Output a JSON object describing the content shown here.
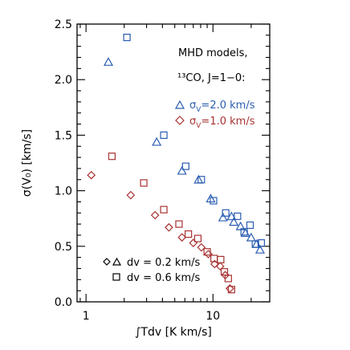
{
  "chart_data": {
    "type": "scatter",
    "xscale": "log",
    "xlim": [
      0.85,
      28
    ],
    "ylim": [
      0.0,
      2.5
    ],
    "xlabel": "∫Tdv [K km/s]",
    "ylabel": "σ(V₀) [km/s]",
    "x_ticks": [
      {
        "value": 1,
        "label": "1"
      },
      {
        "value": 10,
        "label": "10"
      }
    ],
    "y_ticks": [
      {
        "value": 0.0,
        "label": "0.0"
      },
      {
        "value": 0.5,
        "label": "0.5"
      },
      {
        "value": 1.0,
        "label": "1.0"
      },
      {
        "value": 1.5,
        "label": "1.5"
      },
      {
        "value": 2.0,
        "label": "2.0"
      },
      {
        "value": 2.5,
        "label": "2.5"
      }
    ],
    "annotation_lines": [
      "MHD models,",
      "¹³CO, J=1−0:"
    ],
    "colors": {
      "blue": "#2a5db0",
      "red": "#a83232",
      "axis": "#000000"
    },
    "series": [
      {
        "name": "σv=2.0 km/s",
        "color": "#2a5db0",
        "dv02_marker": "triangle",
        "points_dv02": [
          {
            "x": 1.5,
            "y": 2.16
          },
          {
            "x": 3.6,
            "y": 1.44
          },
          {
            "x": 5.7,
            "y": 1.18
          },
          {
            "x": 7.7,
            "y": 1.1
          },
          {
            "x": 9.6,
            "y": 0.93
          },
          {
            "x": 12.0,
            "y": 0.76
          },
          {
            "x": 14.0,
            "y": 0.77
          },
          {
            "x": 14.6,
            "y": 0.72
          },
          {
            "x": 16.5,
            "y": 0.68
          },
          {
            "x": 18.0,
            "y": 0.62
          },
          {
            "x": 20.0,
            "y": 0.58
          },
          {
            "x": 22.0,
            "y": 0.52
          },
          {
            "x": 23.5,
            "y": 0.47
          }
        ],
        "points_dv06": [
          {
            "x": 2.1,
            "y": 2.38
          },
          {
            "x": 4.1,
            "y": 1.5
          },
          {
            "x": 6.1,
            "y": 1.22
          },
          {
            "x": 8.1,
            "y": 1.1
          },
          {
            "x": 10.1,
            "y": 0.91
          },
          {
            "x": 12.6,
            "y": 0.8
          },
          {
            "x": 15.6,
            "y": 0.77
          },
          {
            "x": 17.6,
            "y": 0.63
          },
          {
            "x": 19.6,
            "y": 0.69
          },
          {
            "x": 21.6,
            "y": 0.52
          },
          {
            "x": 24.0,
            "y": 0.53
          }
        ]
      },
      {
        "name": "σv=1.0 km/s",
        "color": "#a83232",
        "dv02_marker": "diamond",
        "points_dv02": [
          {
            "x": 1.1,
            "y": 1.14
          },
          {
            "x": 2.25,
            "y": 0.96
          },
          {
            "x": 3.5,
            "y": 0.78
          },
          {
            "x": 4.5,
            "y": 0.67
          },
          {
            "x": 5.7,
            "y": 0.58
          },
          {
            "x": 7.0,
            "y": 0.53
          },
          {
            "x": 8.1,
            "y": 0.49
          },
          {
            "x": 9.2,
            "y": 0.43
          },
          {
            "x": 10.3,
            "y": 0.34
          },
          {
            "x": 11.4,
            "y": 0.32
          },
          {
            "x": 12.5,
            "y": 0.24
          },
          {
            "x": 13.6,
            "y": 0.12
          }
        ],
        "points_dv06": [
          {
            "x": 1.6,
            "y": 1.31
          },
          {
            "x": 2.85,
            "y": 1.07
          },
          {
            "x": 4.1,
            "y": 0.83
          },
          {
            "x": 5.4,
            "y": 0.7
          },
          {
            "x": 6.4,
            "y": 0.61
          },
          {
            "x": 7.6,
            "y": 0.57
          },
          {
            "x": 9.0,
            "y": 0.45
          },
          {
            "x": 10.2,
            "y": 0.39
          },
          {
            "x": 11.5,
            "y": 0.38
          },
          {
            "x": 12.3,
            "y": 0.27
          },
          {
            "x": 13.2,
            "y": 0.21
          },
          {
            "x": 14.0,
            "y": 0.11
          }
        ]
      }
    ],
    "legend": {
      "position": "upper-right",
      "series_labels": [
        {
          "prefix": "σ",
          "sub": "V",
          "suffix": "=2.0 km/s"
        },
        {
          "prefix": "σ",
          "sub": "V",
          "suffix": "=1.0 km/s"
        }
      ],
      "marker_key": [
        {
          "label": "dv = 0.2 km/s"
        },
        {
          "label": "dv = 0.6 km/s"
        }
      ]
    }
  }
}
